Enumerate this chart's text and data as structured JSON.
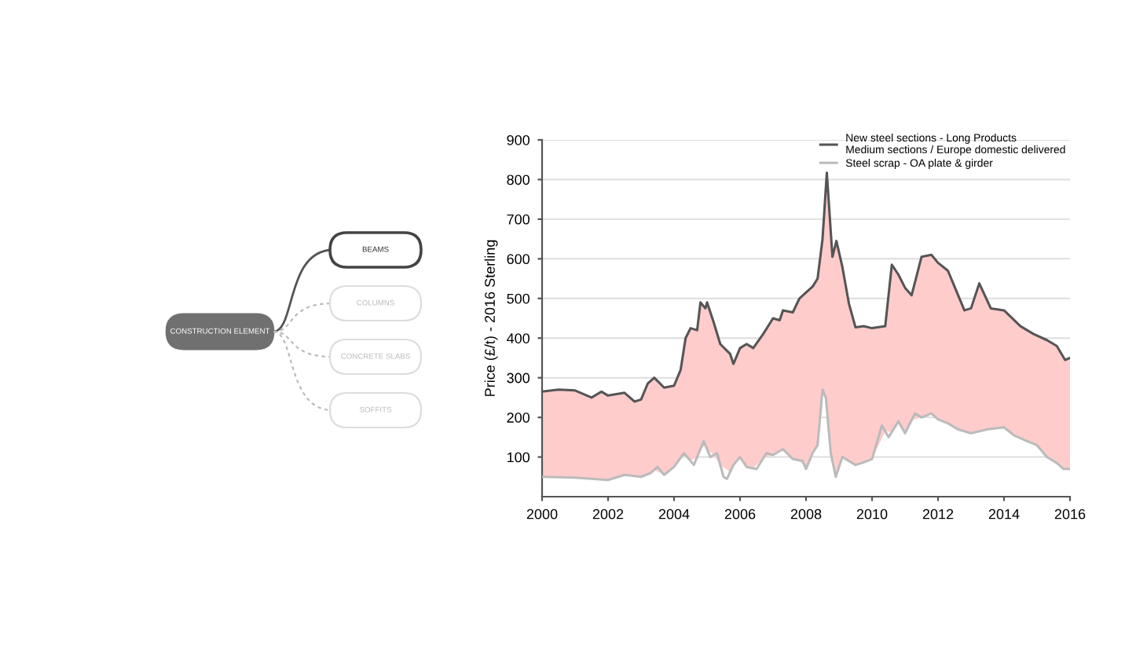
{
  "chart_data": [
    {
      "type": "other",
      "annotations": [
        "CONSTRUCTION ELEMENT",
        "BEAMS",
        "COLUMNS",
        "CONCRETE SLABS",
        "SOFFITS"
      ]
    },
    {
      "type": "line",
      "ylabel": "Price (£/t) - 2016 Sterling",
      "xlim": [
        2000,
        2016
      ],
      "xticks": [
        2000,
        2002,
        2004,
        2006,
        2008,
        2010,
        2012,
        2014,
        2016
      ],
      "ylim": [
        0,
        900
      ],
      "yticks": [
        100,
        200,
        300,
        400,
        500,
        600,
        700,
        800,
        900
      ],
      "grid": "y",
      "legend": "top right",
      "marker": "none",
      "line_style": "solid",
      "series": [
        {
          "name": "New steel sections - Long Products\nMedium sections / Europe domestic delivered",
          "color": "#555555",
          "x": [
            2000,
            2000.5,
            2001,
            2001.5,
            2001.8,
            2002,
            2002.5,
            2002.8,
            2003,
            2003.2,
            2003.4,
            2003.7,
            2004,
            2004.2,
            2004.35,
            2004.5,
            2004.7,
            2004.8,
            2004.95,
            2005,
            2005.2,
            2005.4,
            2005.7,
            2005.8,
            2006,
            2006.2,
            2006.4,
            2006.7,
            2007,
            2007.2,
            2007.3,
            2007.6,
            2007.8,
            2008,
            2008.2,
            2008.35,
            2008.5,
            2008.63,
            2008.8,
            2008.92,
            2009.1,
            2009.3,
            2009.5,
            2009.75,
            2010,
            2010.4,
            2010.6,
            2010.8,
            2011,
            2011.2,
            2011.5,
            2011.8,
            2012,
            2012.3,
            2012.5,
            2012.8,
            2013,
            2013.25,
            2013.6,
            2014,
            2014.5,
            2014.9,
            2015.3,
            2015.6,
            2015.85,
            2016
          ],
          "lower": [
            50,
            49,
            48,
            45,
            43,
            42,
            55,
            52,
            50,
            57,
            68,
            55,
            75,
            98,
            105,
            90,
            100,
            120,
            130,
            120,
            105,
            80,
            62,
            80,
            100,
            75,
            72,
            97,
            105,
            115,
            120,
            95,
            92,
            70,
            110,
            130,
            270,
            240,
            90,
            55,
            100,
            90,
            80,
            87,
            95,
            165,
            163,
            190,
            160,
            193,
            200,
            210,
            195,
            185,
            175,
            165,
            160,
            165,
            171,
            175,
            148,
            133,
            100,
            85,
            70,
            70
          ],
          "upper": [
            265,
            270,
            268,
            250,
            265,
            255,
            262,
            240,
            245,
            285,
            300,
            275,
            280,
            320,
            400,
            425,
            420,
            490,
            475,
            490,
            440,
            385,
            360,
            335,
            375,
            385,
            375,
            410,
            450,
            445,
            470,
            465,
            500,
            515,
            530,
            550,
            650,
            817,
            605,
            645,
            580,
            487,
            427,
            430,
            425,
            430,
            585,
            560,
            527,
            508,
            605,
            610,
            590,
            570,
            530,
            470,
            475,
            538,
            475,
            470,
            430,
            410,
            395,
            380,
            345,
            350
          ],
          "values": [
            265,
            270,
            268,
            250,
            265,
            255,
            262,
            240,
            245,
            285,
            300,
            275,
            280,
            320,
            400,
            425,
            420,
            490,
            475,
            490,
            440,
            385,
            360,
            335,
            375,
            385,
            375,
            410,
            450,
            445,
            470,
            465,
            500,
            515,
            530,
            550,
            650,
            817,
            605,
            645,
            580,
            487,
            427,
            430,
            425,
            430,
            585,
            560,
            527,
            508,
            605,
            610,
            590,
            570,
            530,
            470,
            475,
            538,
            475,
            470,
            430,
            410,
            395,
            380,
            345,
            350
          ]
        },
        {
          "name": "Steel scrap - OA plate & girder",
          "color": "#bbbbbb",
          "x": [
            2000,
            2001,
            2001.5,
            2002,
            2002.5,
            2003,
            2003.3,
            2003.5,
            2003.7,
            2004,
            2004.3,
            2004.6,
            2004.9,
            2005.1,
            2005.3,
            2005.5,
            2005.6,
            2005.8,
            2006,
            2006.2,
            2006.5,
            2006.8,
            2007,
            2007.3,
            2007.6,
            2007.9,
            2008,
            2008.2,
            2008.35,
            2008.5,
            2008.6,
            2008.75,
            2008.9,
            2009.1,
            2009.3,
            2009.5,
            2009.7,
            2010,
            2010.3,
            2010.5,
            2010.8,
            2011,
            2011.3,
            2011.5,
            2011.8,
            2012,
            2012.3,
            2012.6,
            2013,
            2013.5,
            2014,
            2014.3,
            2014.7,
            2015,
            2015.3,
            2015.6,
            2015.8,
            2016
          ],
          "values": [
            50,
            48,
            45,
            42,
            55,
            50,
            60,
            75,
            55,
            75,
            110,
            80,
            140,
            100,
            110,
            50,
            45,
            80,
            100,
            75,
            70,
            110,
            105,
            120,
            95,
            90,
            70,
            110,
            130,
            270,
            250,
            110,
            50,
            100,
            90,
            80,
            85,
            95,
            180,
            150,
            190,
            160,
            210,
            200,
            210,
            195,
            185,
            170,
            160,
            170,
            175,
            155,
            140,
            130,
            100,
            85,
            70,
            70
          ]
        }
      ]
    }
  ]
}
